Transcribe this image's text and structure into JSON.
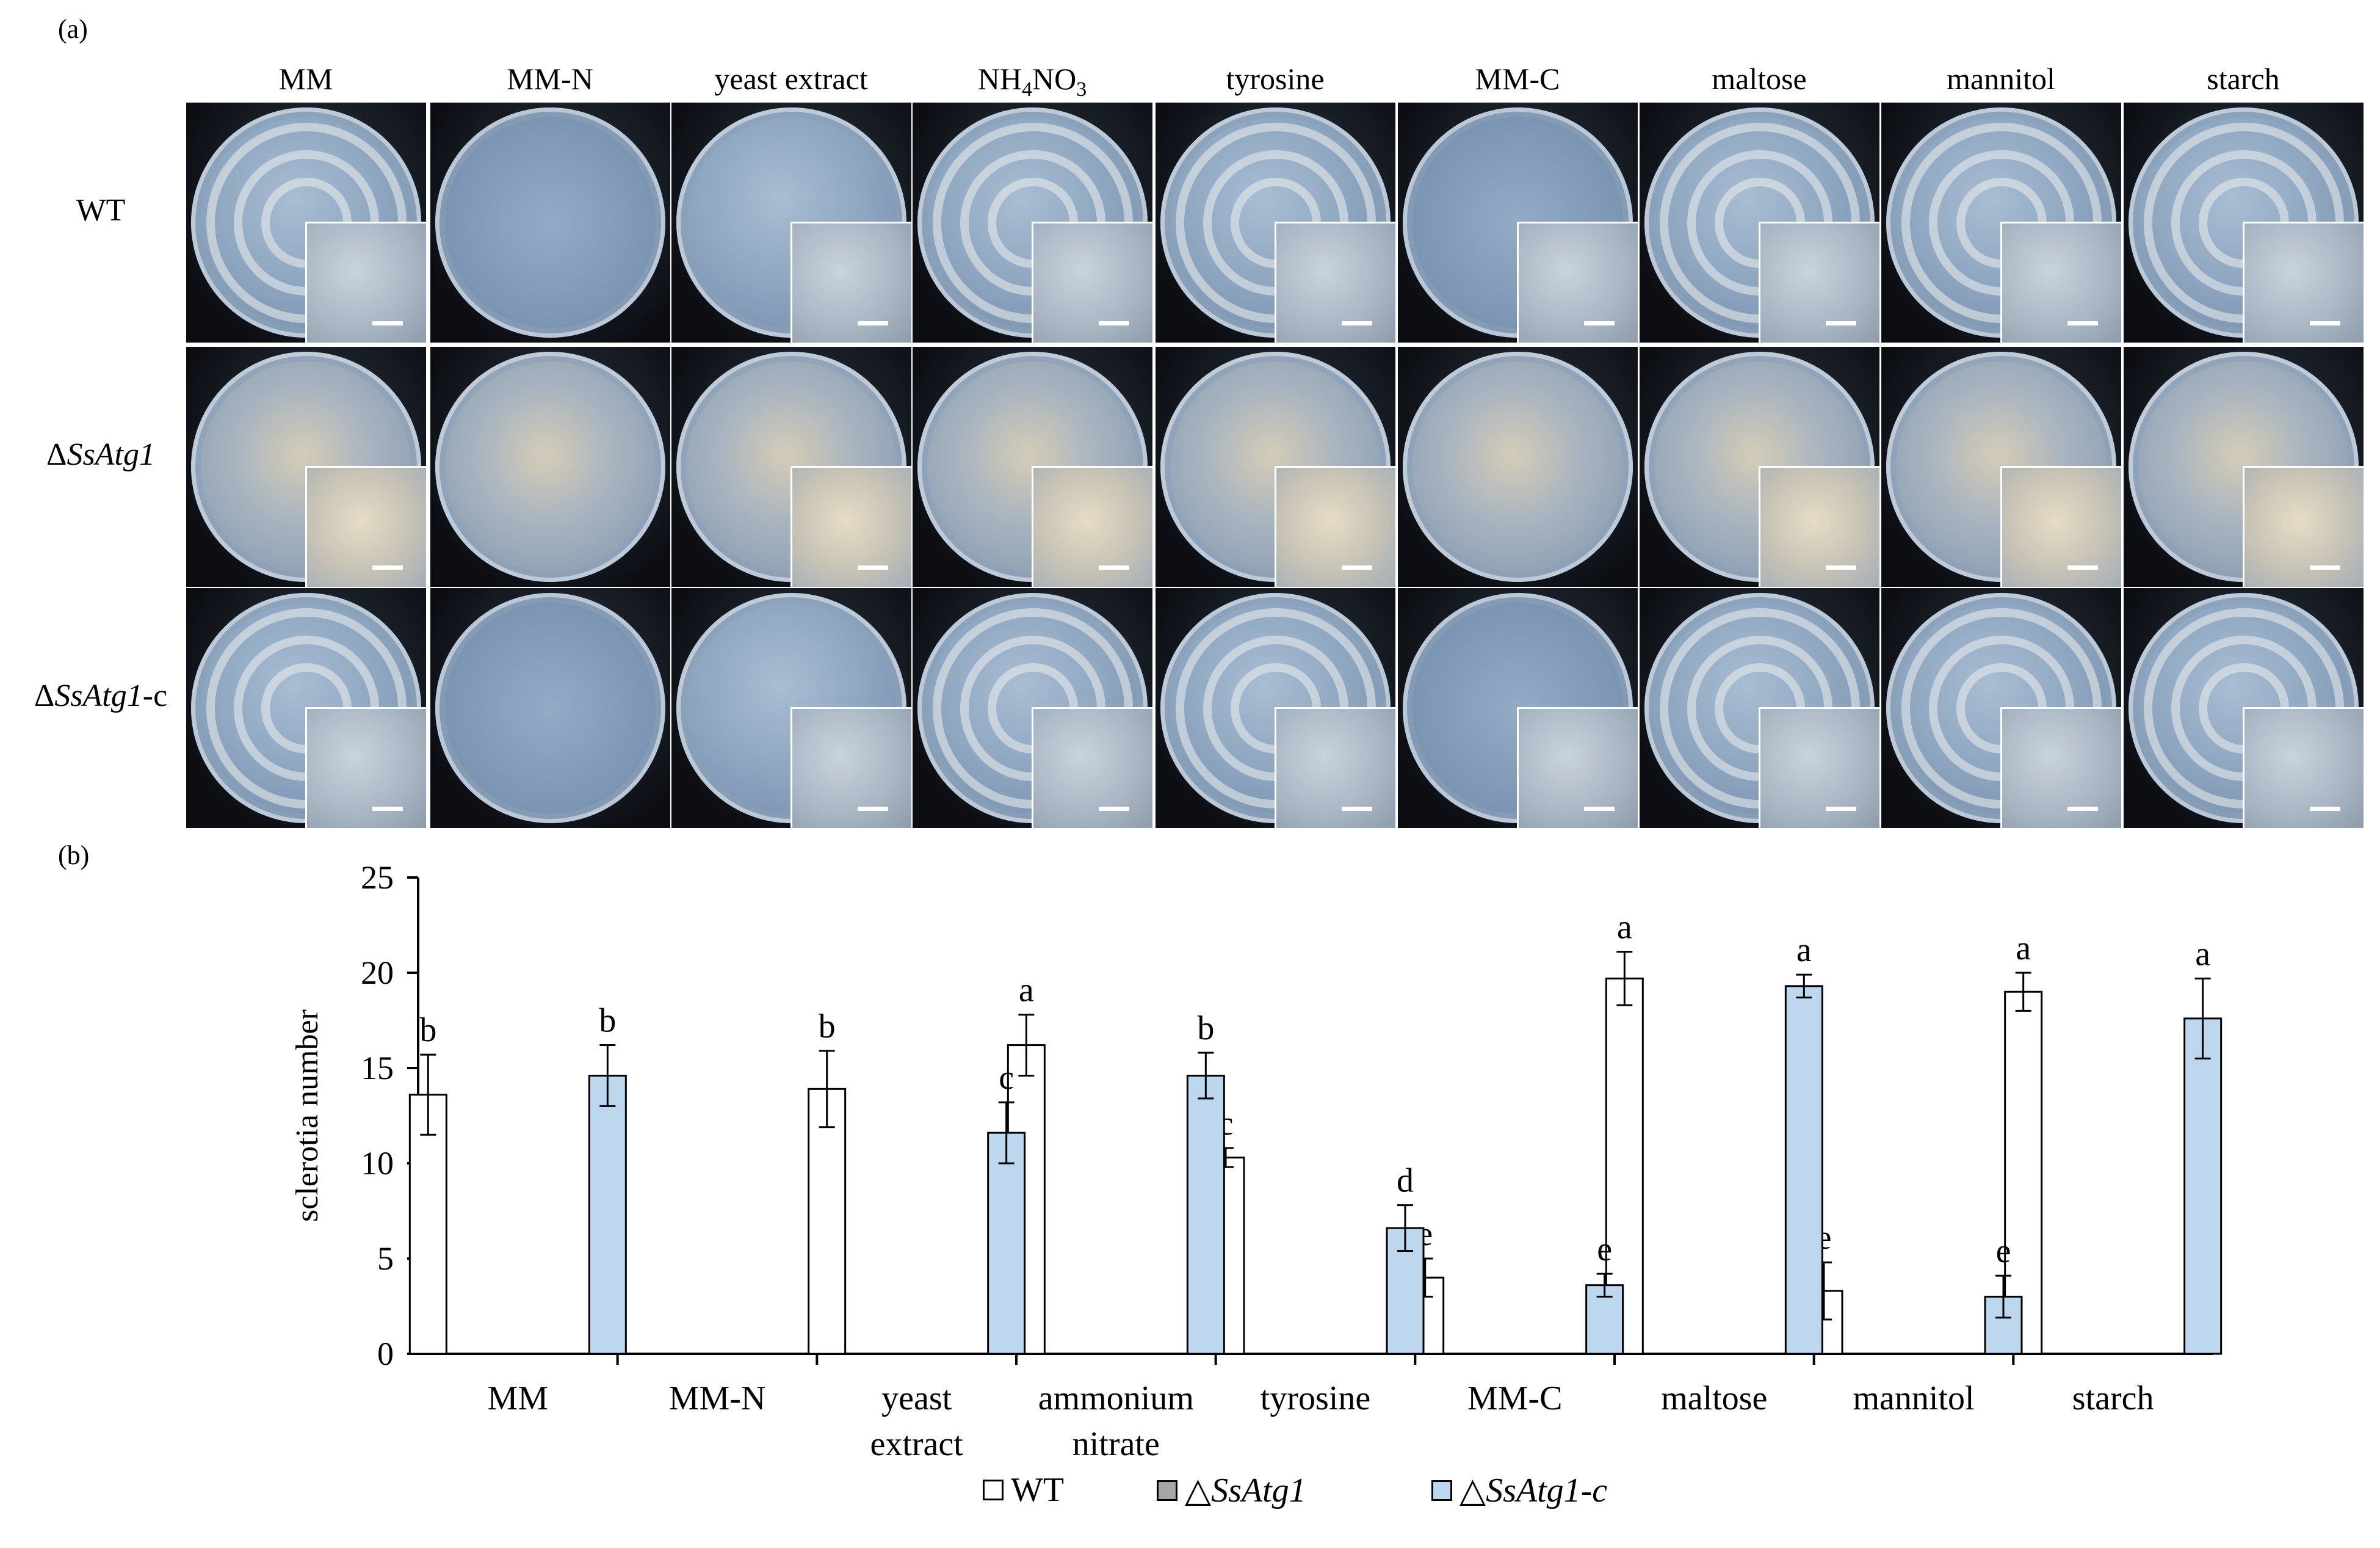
{
  "panels": {
    "a": "(a)",
    "b": "(b)"
  },
  "conditions": [
    "MM",
    "MM-N",
    "yeast extract",
    "NH4NO3",
    "tyrosine",
    "MM-C",
    "maltose",
    "mannitol",
    "starch"
  ],
  "nh4no3_header": {
    "base1": "NH",
    "sub1": "4",
    "base2": "NO",
    "sub2": "3"
  },
  "strains": [
    {
      "prefix": "",
      "italic": "",
      "suffix": "WT"
    },
    {
      "prefix": "Δ",
      "italic": "SsAtg1",
      "suffix": ""
    },
    {
      "prefix": "Δ",
      "italic": "SsAtg1",
      "suffix": "-c"
    }
  ],
  "colors": {
    "wt": "#ffffff",
    "mutant": "#a6a6a6",
    "complemented": "#bdd7ee",
    "axis": "#000000"
  },
  "chart_data": {
    "type": "bar",
    "categories": [
      "MM",
      "MM-N",
      "yeast extract",
      "ammonium nitrate",
      "tyrosine",
      "MM-C",
      "maltose",
      "mannitol",
      "starch"
    ],
    "ylabel": "sclerotia number",
    "ylim": [
      0,
      25
    ],
    "yticks": [
      0,
      5,
      10,
      15,
      20,
      25
    ],
    "series": [
      {
        "name": "WT",
        "values": [
          13.6,
          null,
          13.9,
          16.2,
          10.3,
          4.0,
          19.7,
          3.3,
          19.0
        ],
        "errors": [
          2.1,
          null,
          2.0,
          1.6,
          0.5,
          1.0,
          1.4,
          1.5,
          1.0
        ],
        "letters": [
          "b",
          "",
          "b",
          "a",
          "c",
          "e",
          "a",
          "e",
          "a"
        ]
      },
      {
        "name": "△SsAtg1",
        "values": [
          null,
          null,
          null,
          null,
          null,
          null,
          null,
          null,
          null
        ],
        "errors": [
          null,
          null,
          null,
          null,
          null,
          null,
          null,
          null,
          null
        ],
        "letters": [
          "",
          "",
          "",
          "",
          "",
          "",
          "",
          "",
          ""
        ]
      },
      {
        "name": "△SsAtg1-c",
        "values": [
          14.6,
          null,
          11.6,
          14.6,
          6.6,
          3.6,
          19.3,
          3.0,
          17.6
        ],
        "errors": [
          1.6,
          null,
          1.6,
          1.2,
          1.2,
          0.6,
          0.6,
          1.1,
          2.1
        ],
        "letters": [
          "b",
          "",
          "c",
          "b",
          "d",
          "e",
          "a",
          "e",
          "a"
        ]
      }
    ],
    "legend": [
      {
        "prefix": "",
        "italic": "",
        "text": "WT"
      },
      {
        "prefix": "△",
        "italic": "SsAtg1",
        "text": ""
      },
      {
        "prefix": "△",
        "italic": "SsAtg1-c",
        "text": ""
      }
    ],
    "legend_position": "bottom-center"
  }
}
